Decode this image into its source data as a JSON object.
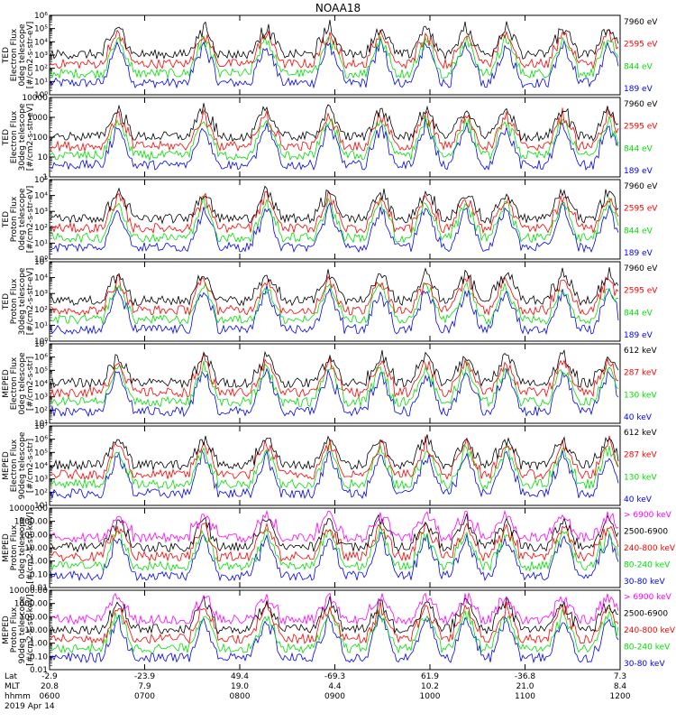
{
  "title": "NOAA18",
  "footer": {
    "rows": [
      {
        "label": "Lat",
        "values": [
          "-2.9",
          "-23.9",
          "49.4",
          "-69.3",
          "61.9",
          "-36.8",
          "7.3"
        ]
      },
      {
        "label": "MLT",
        "values": [
          "20.8",
          "7.9",
          "19.0",
          "4.4",
          "10.2",
          "21.0",
          "8.4"
        ]
      },
      {
        "label": "hhmm",
        "values": [
          "0600",
          "0700",
          "0800",
          "0900",
          "1000",
          "1100",
          "1200"
        ]
      }
    ],
    "date": "2019 Apr 14"
  },
  "colors": {
    "black": "#000000",
    "red": "#ff0000",
    "green": "#00e000",
    "blue": "#0000ff",
    "magenta": "#ff00ff"
  },
  "chart_data": [
    {
      "type": "line",
      "ylabel": [
        "TED",
        "Electron Flux",
        "0deg telescope",
        "[#/cm2-s-str-eV]"
      ],
      "log": true,
      "yticks": [
        "10⁰",
        "10¹",
        "10²",
        "10³",
        "10⁴",
        "10⁵",
        "10⁶"
      ],
      "series": [
        {
          "name": "7960 eV",
          "color": "#000000"
        },
        {
          "name": "2595 eV",
          "color": "#ff0000"
        },
        {
          "name": "844 eV",
          "color": "#00e000"
        },
        {
          "name": "189 eV",
          "color": "#0000ff"
        }
      ]
    },
    {
      "type": "line",
      "ylabel": [
        "TED",
        "Electron Flux",
        "30deg telescope",
        "[#/cm2-s-str-eV]"
      ],
      "log": true,
      "yticks": [
        "1",
        "10",
        "100",
        "1000",
        "10000"
      ],
      "series": [
        {
          "name": "7960 eV",
          "color": "#000000"
        },
        {
          "name": "2595 eV",
          "color": "#ff0000"
        },
        {
          "name": "844 eV",
          "color": "#00e000"
        },
        {
          "name": "189 eV",
          "color": "#0000ff"
        }
      ]
    },
    {
      "type": "line",
      "ylabel": [
        "TED",
        "Proton Flux",
        "0deg telescope",
        "[#/cm2-s-str-eV]"
      ],
      "log": true,
      "yticks": [
        "10⁰",
        "10¹",
        "10²",
        "10³",
        "10⁴",
        "10⁵"
      ],
      "series": [
        {
          "name": "7960 eV",
          "color": "#000000"
        },
        {
          "name": "2595 eV",
          "color": "#ff0000"
        },
        {
          "name": "844 eV",
          "color": "#00e000"
        },
        {
          "name": "189 eV",
          "color": "#0000ff"
        }
      ]
    },
    {
      "type": "line",
      "ylabel": [
        "TED",
        "Proton Flux",
        "30deg telescope",
        "[#/cm2-s-str-eV]"
      ],
      "log": true,
      "yticks": [
        "10⁰",
        "10¹",
        "10²",
        "10³",
        "10⁴",
        "10⁵"
      ],
      "series": [
        {
          "name": "7960 eV",
          "color": "#000000"
        },
        {
          "name": "2595 eV",
          "color": "#ff0000"
        },
        {
          "name": "844 eV",
          "color": "#00e000"
        },
        {
          "name": "189 eV",
          "color": "#0000ff"
        }
      ]
    },
    {
      "type": "line",
      "ylabel": [
        "MEPED",
        "Electron Flux",
        "0deg telescope",
        "[#/cm2-s-str]"
      ],
      "log": true,
      "yticks": [
        "10¹",
        "10²",
        "10³",
        "10⁴",
        "10⁵",
        "10⁶",
        "10⁷"
      ],
      "series": [
        {
          "name": "612 keV",
          "color": "#000000"
        },
        {
          "name": "287 keV",
          "color": "#ff0000"
        },
        {
          "name": "130 keV",
          "color": "#00e000"
        },
        {
          "name": "40 keV",
          "color": "#0000ff"
        }
      ]
    },
    {
      "type": "line",
      "ylabel": [
        "MEPED",
        "Electron Flux",
        "90deg telescope",
        "[#/cm2-s-str]"
      ],
      "log": true,
      "yticks": [
        "10¹",
        "10²",
        "10³",
        "10⁴",
        "10⁵",
        "10⁶",
        "10⁷"
      ],
      "series": [
        {
          "name": "612 keV",
          "color": "#000000"
        },
        {
          "name": "287 keV",
          "color": "#ff0000"
        },
        {
          "name": "130 keV",
          "color": "#00e000"
        },
        {
          "name": "40 keV",
          "color": "#0000ff"
        }
      ]
    },
    {
      "type": "line",
      "ylabel": [
        "MEPED",
        "Proton Flux",
        "0deg telescope",
        "[#/cm2-s-str-keV]"
      ],
      "log": true,
      "yticks": [
        "0.01",
        "0.10",
        "1.00",
        "10.00",
        "100.00",
        "1000.00",
        "10000.00"
      ],
      "series": [
        {
          "name": "> 6900 keV",
          "color": "#ff00ff"
        },
        {
          "name": "2500-6900",
          "color": "#000000"
        },
        {
          "name": "240-800 keV",
          "color": "#ff0000"
        },
        {
          "name": "80-240 keV",
          "color": "#00e000"
        },
        {
          "name": "30-80 keV",
          "color": "#0000ff"
        }
      ]
    },
    {
      "type": "line",
      "ylabel": [
        "MEPED",
        "Proton Flux",
        "90deg telescope",
        "[#/cm2-s-str-keV]"
      ],
      "log": true,
      "yticks": [
        "0.01",
        "0.10",
        "1.00",
        "10.00",
        "100.00",
        "1000.00",
        "10000.00"
      ],
      "series": [
        {
          "name": "> 6900 keV",
          "color": "#ff00ff"
        },
        {
          "name": "2500-6900",
          "color": "#000000"
        },
        {
          "name": "240-800 keV",
          "color": "#ff0000"
        },
        {
          "name": "80-240 keV",
          "color": "#00e000"
        },
        {
          "name": "30-80 keV",
          "color": "#0000ff"
        }
      ]
    }
  ]
}
